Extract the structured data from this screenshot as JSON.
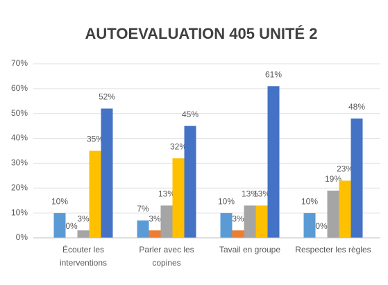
{
  "chart_data": {
    "type": "bar",
    "title": "AUTOEVALUATION 405 UNITÉ 2",
    "categories": [
      "Écouter les interventions",
      "Parler avec les copines",
      "Tavail en groupe",
      "Respecter les règles"
    ],
    "series": [
      {
        "color": "#5b9bd5",
        "values": [
          10,
          7,
          10,
          10
        ],
        "value_labels": [
          "10%",
          "7%",
          "10%",
          "10%"
        ]
      },
      {
        "color": "#ed7d31",
        "values": [
          0,
          3,
          3,
          0
        ],
        "value_labels": [
          "0%",
          "3%",
          "3%",
          "0%"
        ]
      },
      {
        "color": "#a5a5a5",
        "values": [
          3,
          13,
          13,
          19
        ],
        "value_labels": [
          "3%",
          "13%",
          "13%",
          "19%"
        ]
      },
      {
        "color": "#ffc000",
        "values": [
          35,
          32,
          13,
          23
        ],
        "value_labels": [
          "35%",
          "32%",
          "13%",
          "23%"
        ]
      },
      {
        "color": "#4472c4",
        "values": [
          52,
          45,
          61,
          48
        ],
        "value_labels": [
          "52%",
          "45%",
          "61%",
          "48%"
        ]
      }
    ],
    "ylim": [
      0,
      70
    ],
    "yticks": [
      {
        "value": 0,
        "label": "0%"
      },
      {
        "value": 10,
        "label": "10%"
      },
      {
        "value": 20,
        "label": "20%"
      },
      {
        "value": 30,
        "label": "30%"
      },
      {
        "value": 40,
        "label": "40%"
      },
      {
        "value": 50,
        "label": "50%"
      },
      {
        "value": 60,
        "label": "60%"
      },
      {
        "value": 70,
        "label": "70%"
      }
    ],
    "grid": true
  }
}
